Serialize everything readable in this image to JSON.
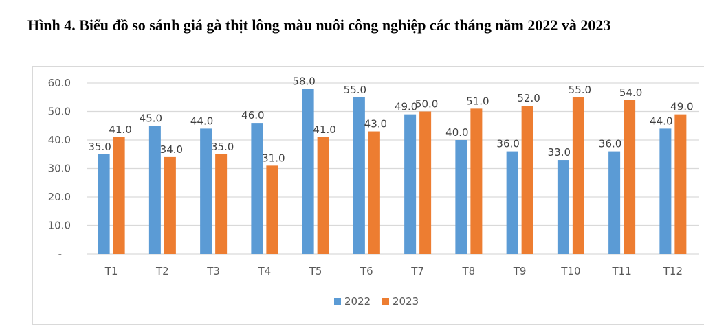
{
  "chart_data": {
    "type": "bar",
    "title": "Hình 4. Biểu đồ so sánh giá gà thịt lông màu nuôi công nghiệp các tháng năm 2022 và 2023",
    "categories": [
      "T1",
      "T2",
      "T3",
      "T4",
      "T5",
      "T6",
      "T7",
      "T8",
      "T9",
      "T10",
      "T11",
      "T12"
    ],
    "series": [
      {
        "name": "2022",
        "color": "#5B9BD5",
        "values": [
          35,
          45,
          44,
          46,
          58,
          55,
          49,
          40,
          36,
          33,
          36,
          44
        ]
      },
      {
        "name": "2023",
        "color": "#ED7D31",
        "values": [
          41,
          34,
          35,
          31,
          41,
          43,
          50,
          51,
          52,
          55,
          54,
          49
        ]
      }
    ],
    "ylim": [
      0,
      60
    ],
    "yticks": [
      "-",
      "10.0",
      "20.0",
      "30.0",
      "40.0",
      "50.0",
      "60.0"
    ],
    "grid": true,
    "legend": "bottom",
    "xlabel": "",
    "ylabel": ""
  }
}
